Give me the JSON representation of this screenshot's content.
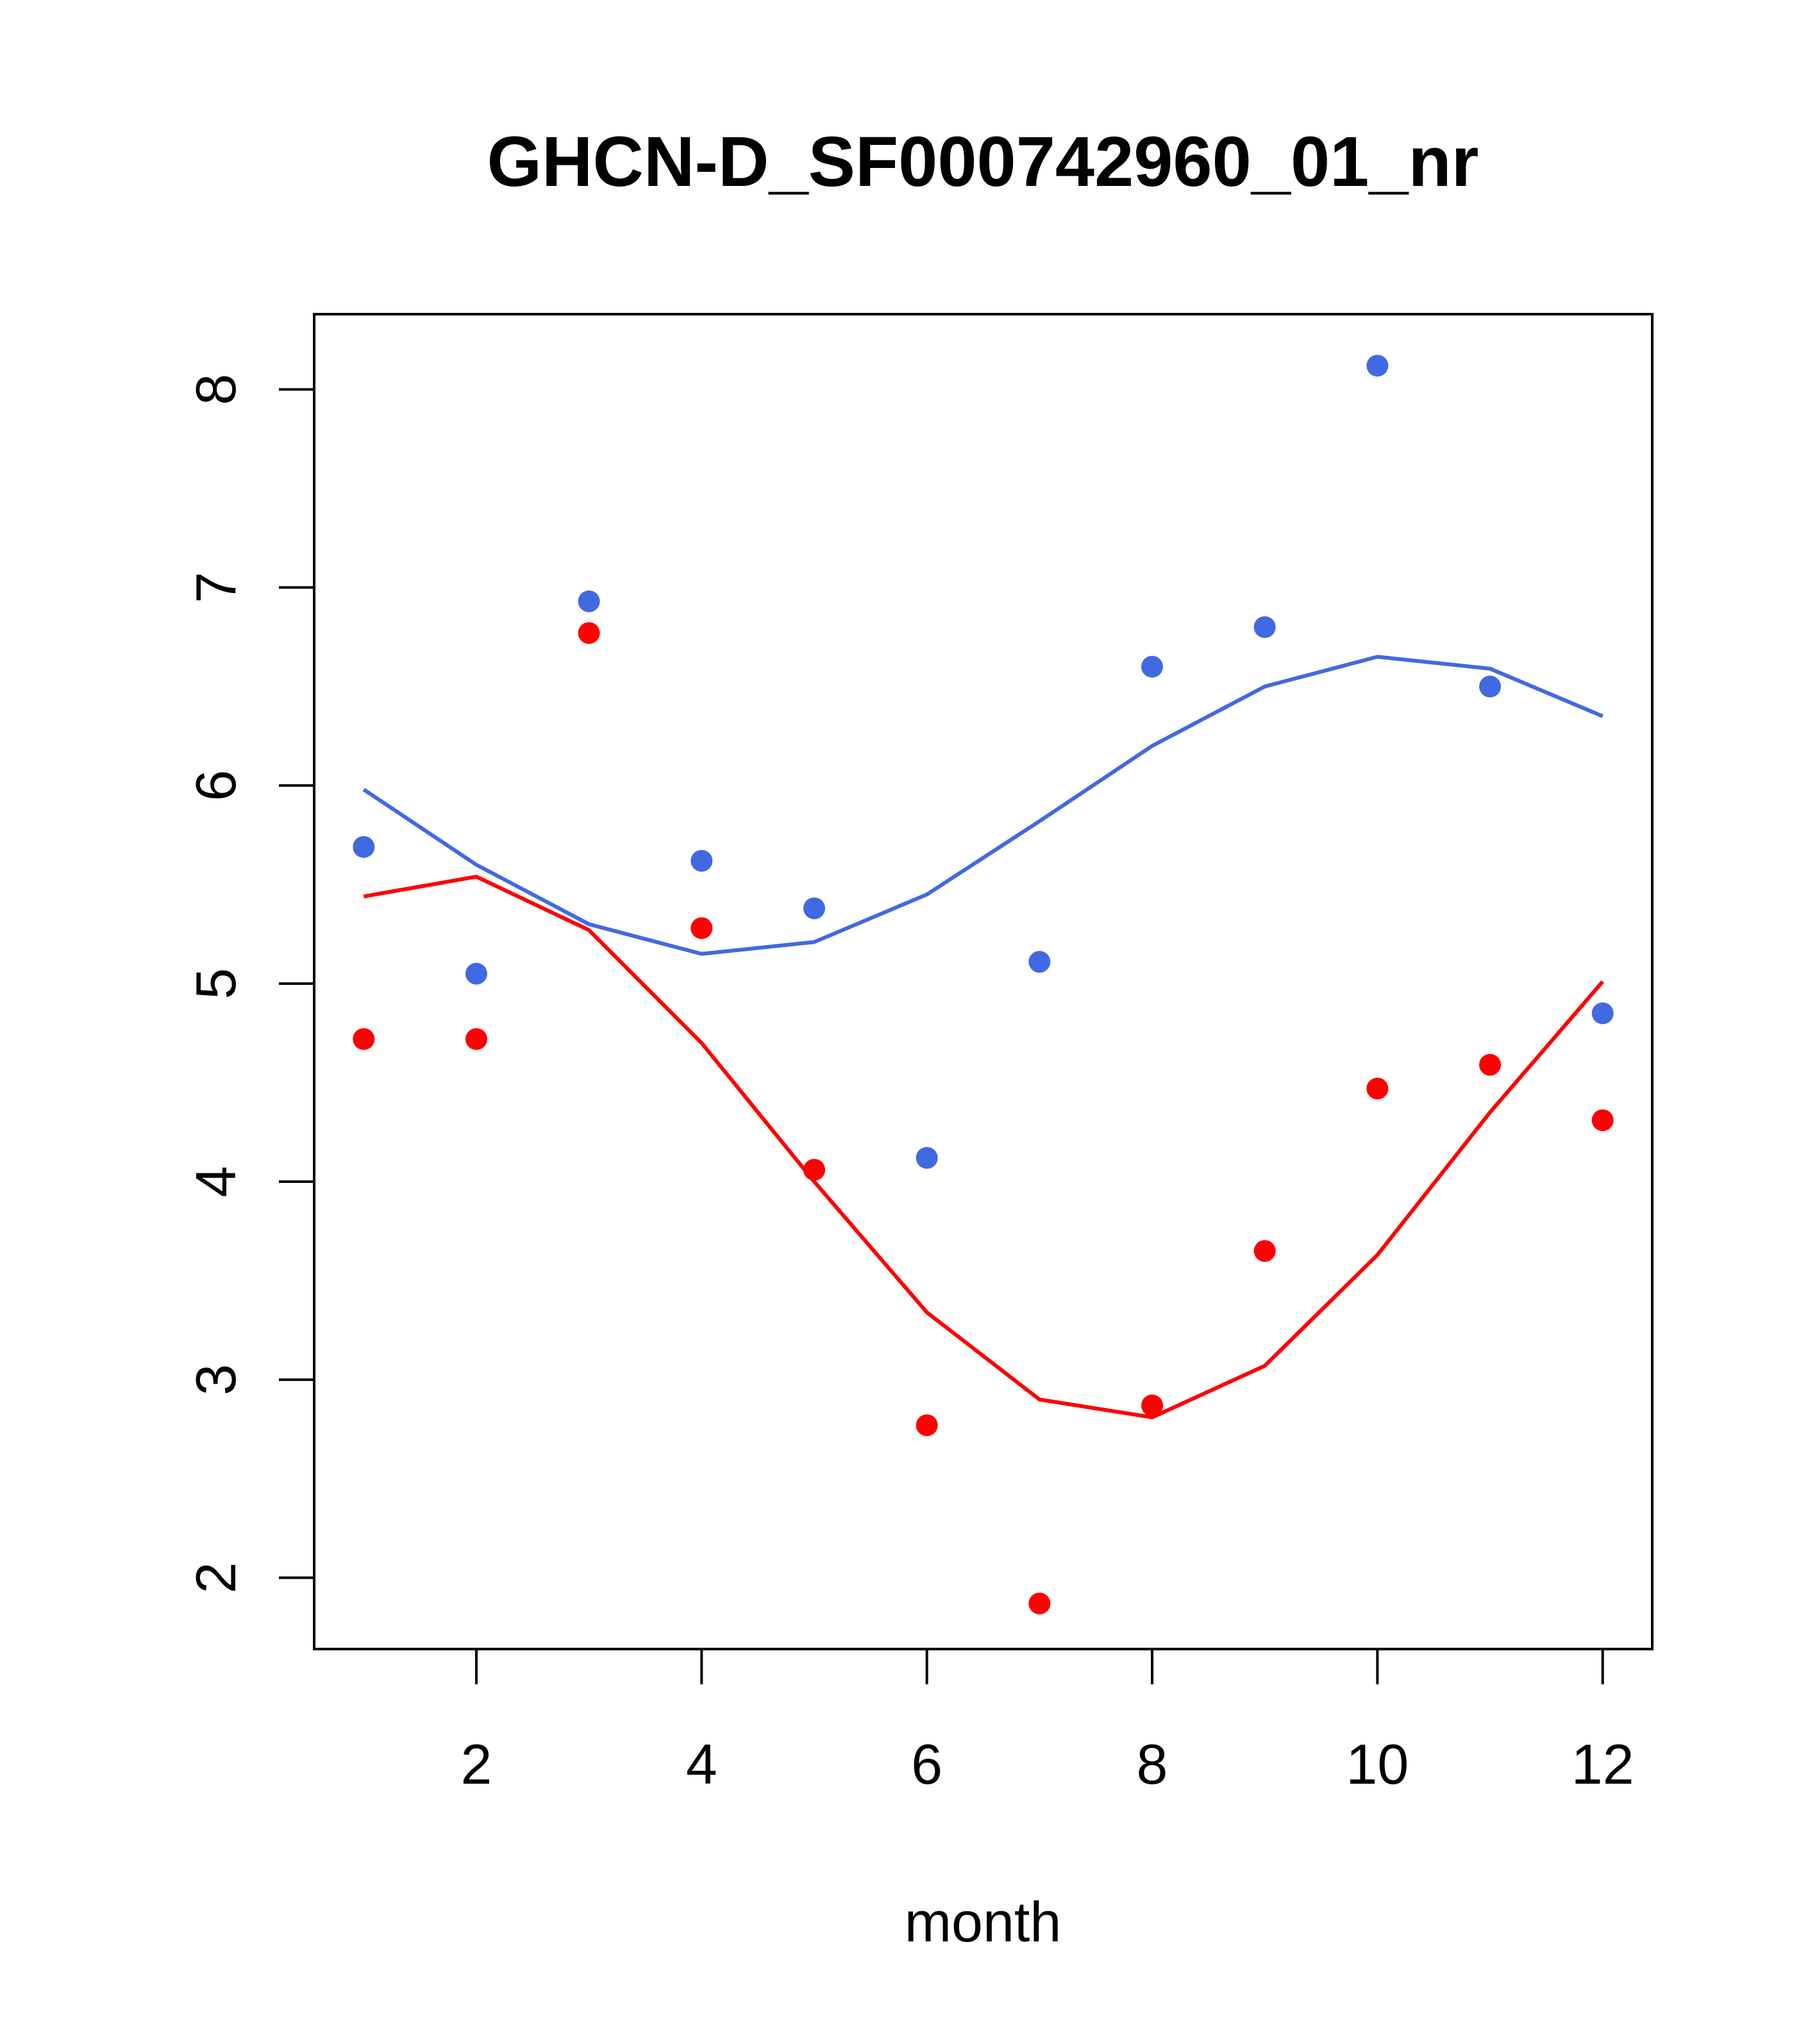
{
  "chart_data": {
    "type": "scatter",
    "title": "GHCN-D_SF000742960_01_nr",
    "xlabel": "month",
    "ylabel": "",
    "xlim": [
      0.56,
      12.44
    ],
    "ylim": [
      1.64,
      8.38
    ],
    "x_ticks": [
      2,
      4,
      6,
      8,
      10,
      12
    ],
    "y_ticks": [
      2,
      3,
      4,
      5,
      6,
      7,
      8
    ],
    "grid": false,
    "series": [
      {
        "name": "blue points",
        "color": "#4169e1",
        "kind": "points",
        "x": [
          1,
          2,
          3,
          4,
          5,
          6,
          7,
          8,
          9,
          10,
          11,
          12
        ],
        "y": [
          5.69,
          5.05,
          6.93,
          5.62,
          5.38,
          4.12,
          5.11,
          6.6,
          6.8,
          8.12,
          6.5,
          4.85
        ]
      },
      {
        "name": "red points",
        "color": "#ff0000",
        "kind": "points",
        "x": [
          1,
          2,
          3,
          4,
          5,
          6,
          7,
          8,
          9,
          10,
          11,
          12
        ],
        "y": [
          4.72,
          4.72,
          6.77,
          5.28,
          4.06,
          2.77,
          1.87,
          2.87,
          3.65,
          4.47,
          4.59,
          4.31
        ]
      },
      {
        "name": "blue curve",
        "color": "#4169e1",
        "kind": "line",
        "x": [
          1,
          2,
          3,
          4,
          5,
          6,
          7,
          8,
          9,
          10,
          11,
          12
        ],
        "y": [
          5.98,
          5.6,
          5.3,
          5.15,
          5.21,
          5.45,
          5.82,
          6.2,
          6.5,
          6.65,
          6.59,
          6.35
        ]
      },
      {
        "name": "red curve",
        "color": "#ff0000",
        "kind": "line",
        "x": [
          1,
          2,
          3,
          4,
          5,
          6,
          7,
          8,
          9,
          10,
          11,
          12
        ],
        "y": [
          5.44,
          5.54,
          5.27,
          4.7,
          4.0,
          3.34,
          2.9,
          2.81,
          3.07,
          3.63,
          4.35,
          5.01
        ]
      }
    ]
  }
}
